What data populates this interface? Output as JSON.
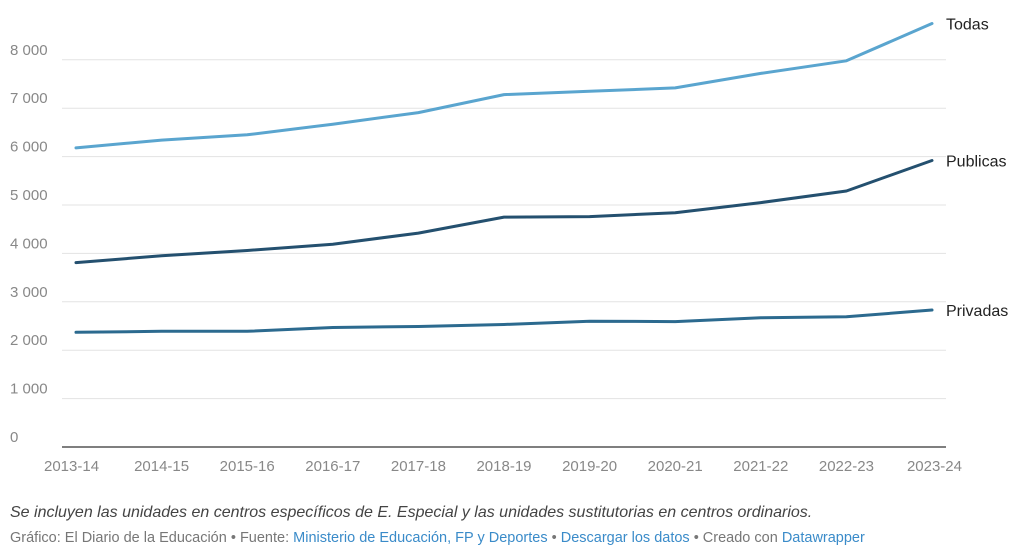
{
  "chart_data": {
    "type": "line",
    "categories": [
      "2013-14",
      "2014-15",
      "2015-16",
      "2016-17",
      "2017-18",
      "2018-19",
      "2019-20",
      "2020-21",
      "2021-22",
      "2022-23",
      "2023-24"
    ],
    "y_ticks": [
      {
        "value": 0,
        "label": "0"
      },
      {
        "value": 1000,
        "label": "1 000"
      },
      {
        "value": 2000,
        "label": "2 000"
      },
      {
        "value": 3000,
        "label": "3 000"
      },
      {
        "value": 4000,
        "label": "4 000"
      },
      {
        "value": 5000,
        "label": "5 000"
      },
      {
        "value": 6000,
        "label": "6 000"
      },
      {
        "value": 7000,
        "label": "7 000"
      },
      {
        "value": 8000,
        "label": "8 000"
      }
    ],
    "ylim": [
      0,
      9000
    ],
    "grid": true,
    "series": [
      {
        "name": "Todas",
        "color": "#5aa5cf",
        "values": [
          6180,
          6340,
          6450,
          6670,
          6910,
          7280,
          7350,
          7420,
          7720,
          7980,
          8750
        ]
      },
      {
        "name": "Publicas",
        "color": "#24506f",
        "values": [
          3810,
          3950,
          4060,
          4190,
          4420,
          4750,
          4760,
          4840,
          5050,
          5290,
          5920
        ]
      },
      {
        "name": "Privadas",
        "color": "#2c6a8f",
        "values": [
          2370,
          2390,
          2390,
          2470,
          2490,
          2530,
          2600,
          2590,
          2670,
          2690,
          2830
        ]
      }
    ]
  },
  "footer": {
    "note": "Se incluyen las unidades en centros específicos de E. Especial y las unidades sustitutorias en centros ordinarios.",
    "grafico_label": "Gráfico: El Diario de la Educación",
    "sep1": " • Fuente: ",
    "source_link": "Ministerio de Educación, FP y Deportes",
    "sep2": " • ",
    "download_link": "Descargar los datos",
    "sep3": " • Creado con ",
    "datawrapper_link": "Datawrapper"
  }
}
